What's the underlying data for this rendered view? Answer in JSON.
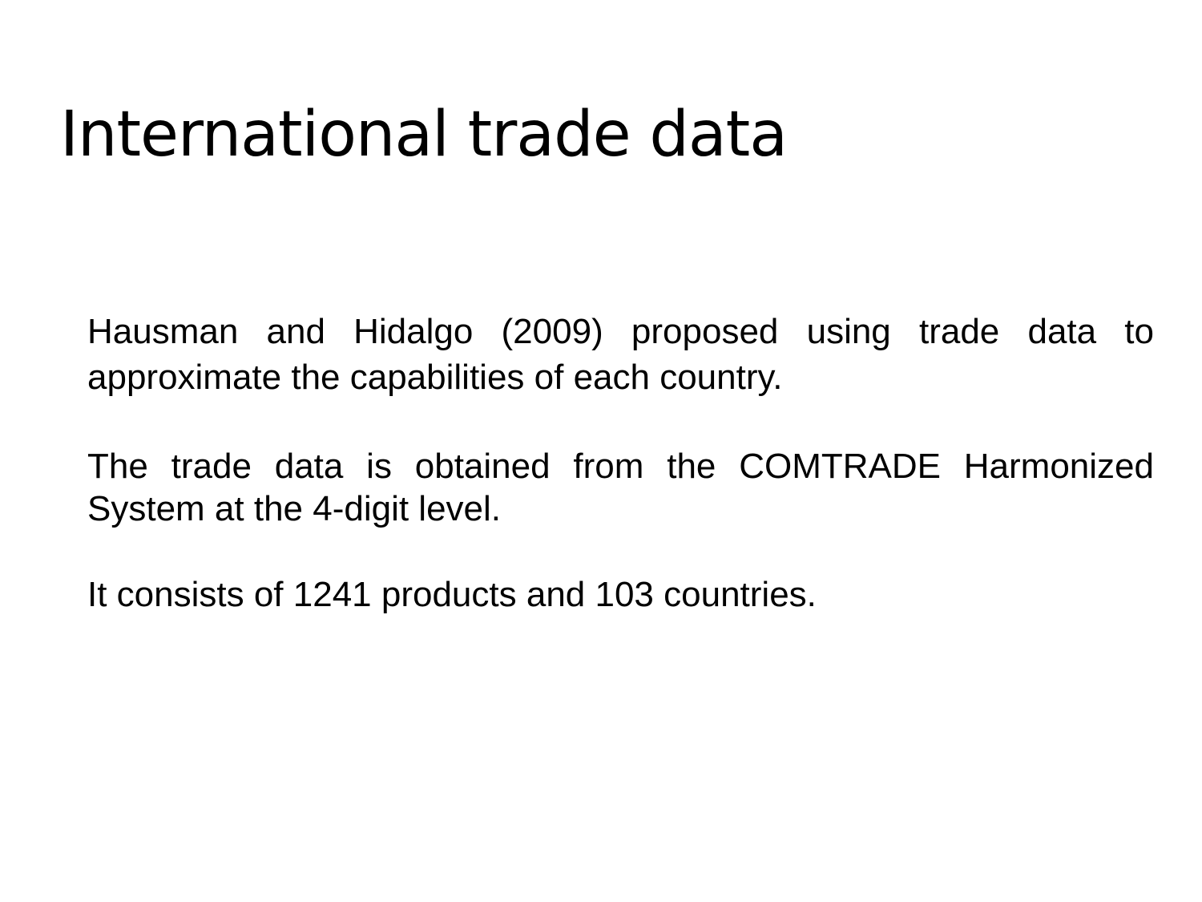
{
  "slide": {
    "title": "International trade data",
    "paragraphs": [
      "Hausman and Hidalgo (2009) proposed using trade data to approximate the capabilities of each country.",
      "The trade data is obtained from the COMTRADE Harmonized System at the 4-digit level.",
      "It consists of 1241 products and 103 countries."
    ]
  }
}
